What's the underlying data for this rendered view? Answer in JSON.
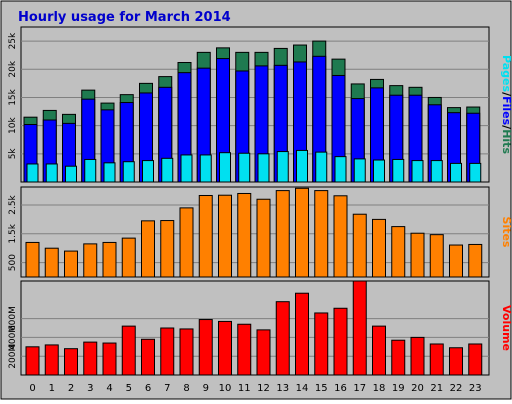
{
  "title": "Hourly usage for March 2014",
  "colors": {
    "background": "#c0c0c0",
    "title": "#0000cc",
    "hits": "#1f7a50",
    "files": "#0000ff",
    "pages": "#00e0f0",
    "sites": "#ff8000",
    "volume": "#ff0000",
    "label_slash": "#000000"
  },
  "chart_data": [
    {
      "type": "bar",
      "title": "Hourly usage for March 2014",
      "categories": [
        "0",
        "1",
        "2",
        "3",
        "4",
        "5",
        "6",
        "7",
        "8",
        "9",
        "10",
        "11",
        "12",
        "13",
        "14",
        "15",
        "16",
        "17",
        "18",
        "19",
        "20",
        "21",
        "22",
        "23"
      ],
      "ylabel_parts": [
        "Pages",
        "/",
        "Files",
        "/",
        "Hits"
      ],
      "ytick_labels": [
        "5k",
        "10k",
        "15k",
        "20k",
        "25k"
      ],
      "yticks": [
        5000,
        10000,
        15000,
        20000,
        25000
      ],
      "ylim": [
        0,
        27500
      ],
      "grid": true,
      "series": [
        {
          "name": "Hits",
          "values": [
            11500,
            12700,
            12000,
            16300,
            14000,
            15500,
            17500,
            18700,
            21200,
            23000,
            23800,
            23000,
            23000,
            23700,
            24300,
            25000,
            21800,
            17400,
            18200,
            17100,
            16800,
            15000,
            13200,
            13300
          ]
        },
        {
          "name": "Files",
          "values": [
            10200,
            11000,
            10400,
            14700,
            12800,
            14100,
            15800,
            16800,
            19400,
            20200,
            21900,
            19700,
            20600,
            20700,
            21300,
            22300,
            18900,
            14800,
            16700,
            15400,
            15400,
            13700,
            12300,
            12200
          ]
        },
        {
          "name": "Pages",
          "values": [
            3200,
            3200,
            2800,
            4000,
            3400,
            3600,
            3800,
            4200,
            4800,
            4800,
            5200,
            5100,
            5000,
            5400,
            5600,
            5300,
            4500,
            4100,
            3900,
            4000,
            3800,
            3800,
            3300,
            3300
          ]
        }
      ]
    },
    {
      "type": "bar",
      "categories": [
        "0",
        "1",
        "2",
        "3",
        "4",
        "5",
        "6",
        "7",
        "8",
        "9",
        "10",
        "11",
        "12",
        "13",
        "14",
        "15",
        "16",
        "17",
        "18",
        "19",
        "20",
        "21",
        "22",
        "23"
      ],
      "ylabel": "Sites",
      "ytick_labels": [
        "500",
        "1.5k",
        "2.5k"
      ],
      "yticks": [
        500,
        1500,
        2500
      ],
      "ylim": [
        0,
        3125
      ],
      "grid": true,
      "series": [
        {
          "name": "Sites",
          "values": [
            1200,
            1000,
            900,
            1150,
            1200,
            1350,
            1950,
            1960,
            2400,
            2830,
            2840,
            2900,
            2700,
            3000,
            3080,
            3000,
            2820,
            2180,
            2000,
            1750,
            1520,
            1470,
            1110,
            1130
          ]
        }
      ]
    },
    {
      "type": "bar",
      "categories": [
        "0",
        "1",
        "2",
        "3",
        "4",
        "5",
        "6",
        "7",
        "8",
        "9",
        "10",
        "11",
        "12",
        "13",
        "14",
        "15",
        "16",
        "17",
        "18",
        "19",
        "20",
        "21",
        "22",
        "23"
      ],
      "ylabel": "Volume",
      "ytick_labels": [
        "200M",
        "400M",
        "600M"
      ],
      "yticks": [
        200,
        400,
        600
      ],
      "ylim": [
        0,
        1000
      ],
      "grid": true,
      "series": [
        {
          "name": "Volume",
          "values": [
            300,
            320,
            280,
            350,
            340,
            520,
            380,
            500,
            490,
            590,
            570,
            540,
            480,
            780,
            870,
            660,
            710,
            1010,
            520,
            370,
            400,
            330,
            290,
            330
          ]
        }
      ]
    }
  ]
}
